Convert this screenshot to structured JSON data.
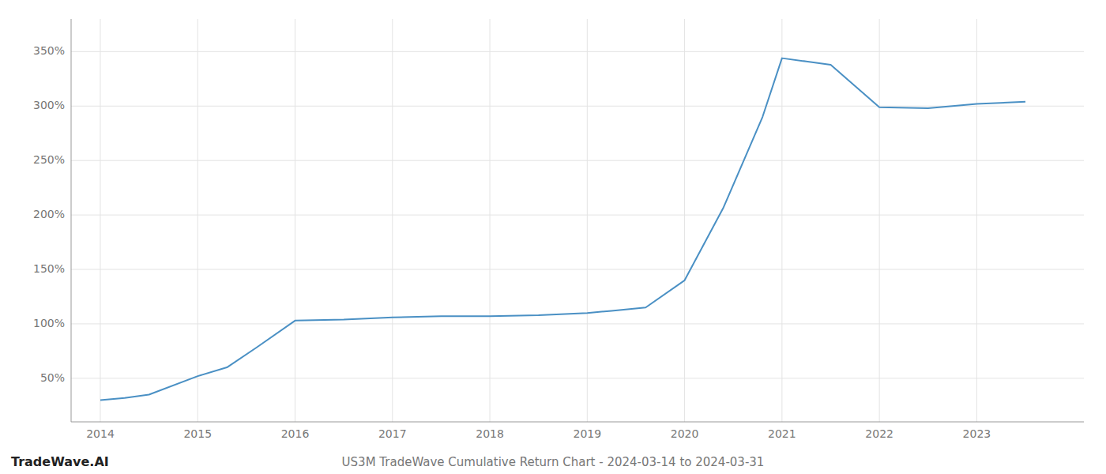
{
  "chart_data": {
    "type": "line",
    "title": "US3M TradeWave Cumulative Return Chart - 2024-03-14 to 2024-03-31",
    "annotations": [
      "TradeWave.AI"
    ],
    "x": [
      2014.0,
      2014.25,
      2014.5,
      2015.0,
      2015.3,
      2015.6,
      2016.0,
      2016.5,
      2017.0,
      2017.5,
      2018.0,
      2018.5,
      2019.0,
      2019.25,
      2019.6,
      2020.0,
      2020.4,
      2020.8,
      2021.0,
      2021.25,
      2021.5,
      2022.0,
      2022.5,
      2023.0,
      2023.5
    ],
    "values": [
      30,
      32,
      35,
      52,
      60,
      78,
      103,
      104,
      106,
      107,
      107,
      108,
      110,
      112,
      115,
      140,
      207,
      290,
      344,
      341,
      338,
      299,
      298,
      302,
      304
    ],
    "color": "#4a90c4",
    "xlim": [
      2013.7,
      2024.1
    ],
    "ylim": [
      10,
      380
    ],
    "xticks": [
      2014,
      2015,
      2016,
      2017,
      2018,
      2019,
      2020,
      2021,
      2022,
      2023
    ],
    "yticks": [
      {
        "value": 50,
        "label": "50%"
      },
      {
        "value": 100,
        "label": "100%"
      },
      {
        "value": 150,
        "label": "150%"
      },
      {
        "value": 200,
        "label": "200%"
      },
      {
        "value": 250,
        "label": "250%"
      },
      {
        "value": 300,
        "label": "300%"
      },
      {
        "value": 350,
        "label": "350%"
      }
    ],
    "grid": true
  }
}
